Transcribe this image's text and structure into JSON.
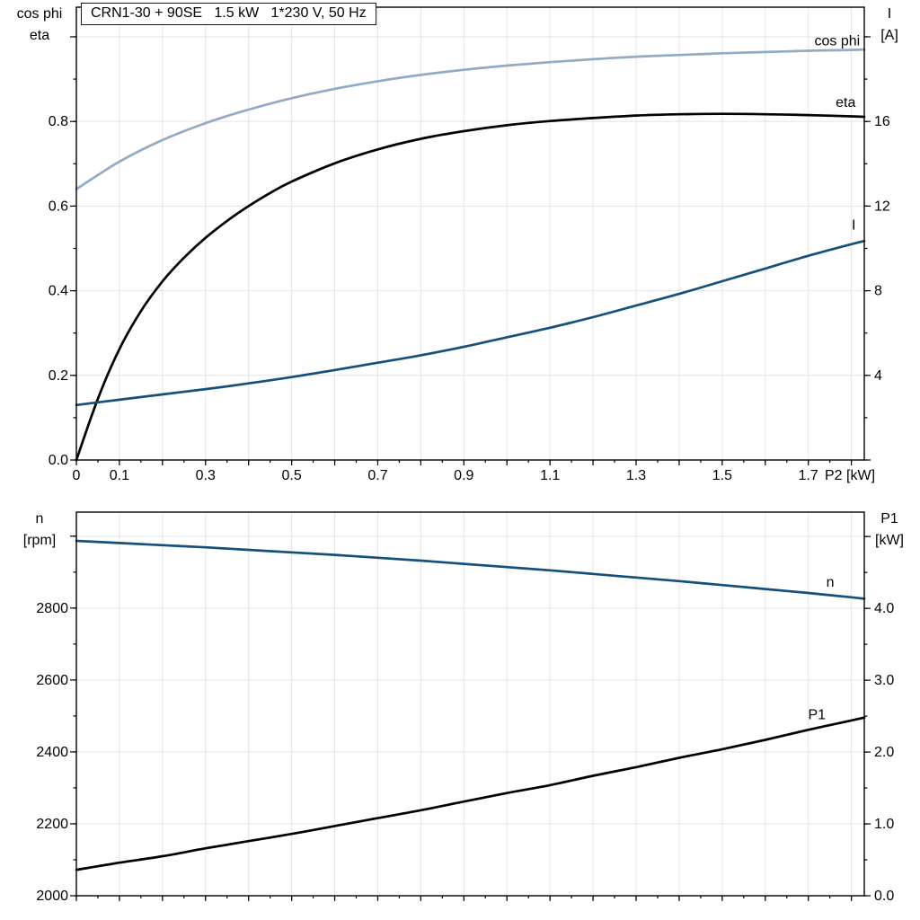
{
  "colors": {
    "black": "#000000",
    "dark_blue": "#14507a",
    "light_blue": "#92abc5",
    "grid": "#e4e4e4",
    "frame": "#000000"
  },
  "chart_data": [
    {
      "type": "line",
      "title": "CRN1-30 + 90SE   1.5 kW   1*230 V, 50 Hz",
      "x_axis": {
        "min": 0,
        "max": 1.83,
        "grid_step": 0.1,
        "tick_major": 0.1,
        "tick_minor": 0.05,
        "label": "P2 [kW]",
        "ticks": [
          [
            0,
            "0"
          ],
          [
            0.1,
            "0.1"
          ],
          [
            0.3,
            "0.3"
          ],
          [
            0.5,
            "0.5"
          ],
          [
            0.7,
            "0.7"
          ],
          [
            0.9,
            "0.9"
          ],
          [
            1.1,
            "1.1"
          ],
          [
            1.3,
            "1.3"
          ],
          [
            1.5,
            "1.5"
          ],
          [
            1.7,
            "1.7"
          ]
        ]
      },
      "y_left": {
        "label_lines": [
          "cos phi",
          "eta"
        ],
        "min": 0,
        "max": 1.07,
        "grid_step": 0.2,
        "tick_major": 0.2,
        "tick_minor": 0.1,
        "ticks": [
          [
            0,
            "0.0"
          ],
          [
            0.2,
            "0.2"
          ],
          [
            0.4,
            "0.4"
          ],
          [
            0.6,
            "0.6"
          ],
          [
            0.8,
            "0.8"
          ]
        ]
      },
      "y_right": {
        "label_lines": [
          "I",
          "[A]"
        ],
        "min": 0,
        "max": 21.4,
        "tick_major": 4,
        "tick_minor": 2,
        "ticks": [
          [
            4,
            "4"
          ],
          [
            8,
            "8"
          ],
          [
            12,
            "12"
          ],
          [
            16,
            "16"
          ]
        ]
      },
      "series": [
        {
          "id": "cos-phi",
          "name": "cos phi",
          "axis": "left",
          "color": "#92abc5",
          "label": {
            "x": 1.82,
            "y": 0.99,
            "anchor": "end"
          },
          "x": [
            0,
            0.1,
            0.2,
            0.3,
            0.4,
            0.5,
            0.6,
            0.7,
            0.8,
            0.9,
            1.0,
            1.1,
            1.2,
            1.3,
            1.4,
            1.5,
            1.6,
            1.7,
            1.8,
            1.83
          ],
          "y": [
            0.64,
            0.705,
            0.756,
            0.796,
            0.828,
            0.855,
            0.877,
            0.895,
            0.91,
            0.922,
            0.932,
            0.94,
            0.947,
            0.953,
            0.957,
            0.961,
            0.964,
            0.967,
            0.969,
            0.97
          ]
        },
        {
          "id": "eta",
          "name": "eta",
          "axis": "left",
          "color": "#000000",
          "label": {
            "x": 1.81,
            "y": 0.845,
            "anchor": "end"
          },
          "x": [
            0,
            0.05,
            0.1,
            0.15,
            0.2,
            0.25,
            0.3,
            0.35,
            0.4,
            0.45,
            0.5,
            0.6,
            0.7,
            0.8,
            0.9,
            1.0,
            1.1,
            1.2,
            1.3,
            1.4,
            1.5,
            1.6,
            1.7,
            1.8,
            1.83
          ],
          "y": [
            0,
            0.145,
            0.262,
            0.352,
            0.422,
            0.478,
            0.525,
            0.565,
            0.6,
            0.631,
            0.658,
            0.701,
            0.734,
            0.759,
            0.777,
            0.791,
            0.801,
            0.808,
            0.814,
            0.817,
            0.818,
            0.817,
            0.815,
            0.812,
            0.811
          ]
        },
        {
          "id": "current",
          "name": "I",
          "axis": "right",
          "color": "#14507a",
          "label": {
            "x": 1.81,
            "y": 11.1,
            "anchor": "end"
          },
          "x": [
            0,
            0.1,
            0.2,
            0.3,
            0.4,
            0.5,
            0.6,
            0.7,
            0.8,
            0.9,
            1.0,
            1.1,
            1.2,
            1.3,
            1.4,
            1.5,
            1.6,
            1.7,
            1.8,
            1.83
          ],
          "y": [
            2.6,
            2.85,
            3.1,
            3.35,
            3.62,
            3.92,
            4.25,
            4.6,
            4.95,
            5.35,
            5.8,
            6.25,
            6.75,
            7.3,
            7.85,
            8.45,
            9.05,
            9.65,
            10.2,
            10.35
          ]
        }
      ]
    },
    {
      "type": "line",
      "x_axis": {
        "min": 0,
        "max": 1.83,
        "grid_step": 0.1,
        "tick_major": 0.1,
        "tick_minor": 0.05,
        "ticks": []
      },
      "y_left": {
        "label_lines": [
          "n",
          "[rpm]"
        ],
        "min": 2000,
        "max": 3067,
        "grid_step": 200,
        "tick_major": 200,
        "tick_minor": 100,
        "ticks": [
          [
            2000,
            "2000"
          ],
          [
            2200,
            "2200"
          ],
          [
            2400,
            "2400"
          ],
          [
            2600,
            "2600"
          ],
          [
            2800,
            "2800"
          ]
        ]
      },
      "y_right": {
        "label_lines": [
          "P1",
          "[kW]"
        ],
        "min": 0,
        "max": 5.34,
        "tick_major": 1,
        "tick_minor": 0.5,
        "ticks": [
          [
            0,
            "0.0"
          ],
          [
            1,
            "1.0"
          ],
          [
            2,
            "2.0"
          ],
          [
            3,
            "3.0"
          ],
          [
            4,
            "4.0"
          ]
        ]
      },
      "series": [
        {
          "id": "speed",
          "name": "n",
          "axis": "left",
          "color": "#14507a",
          "label": {
            "x": 1.76,
            "y": 2872,
            "anchor": "end"
          },
          "x": [
            0,
            0.1,
            0.2,
            0.3,
            0.4,
            0.5,
            0.6,
            0.7,
            0.8,
            0.9,
            1.0,
            1.1,
            1.2,
            1.3,
            1.4,
            1.5,
            1.6,
            1.7,
            1.8,
            1.83
          ],
          "y": [
            2987,
            2981,
            2975,
            2969,
            2962,
            2955,
            2948,
            2940,
            2932,
            2923,
            2914,
            2905,
            2895,
            2885,
            2875,
            2864,
            2853,
            2842,
            2830,
            2826
          ]
        },
        {
          "id": "p1",
          "name": "P1",
          "axis": "right",
          "color": "#000000",
          "label": {
            "x": 1.72,
            "y": 2.52,
            "anchor": "middle"
          },
          "x": [
            0,
            0.1,
            0.2,
            0.3,
            0.4,
            0.5,
            0.6,
            0.7,
            0.8,
            0.9,
            1.0,
            1.1,
            1.2,
            1.3,
            1.4,
            1.5,
            1.6,
            1.7,
            1.8,
            1.83
          ],
          "y": [
            0.36,
            0.46,
            0.55,
            0.66,
            0.76,
            0.86,
            0.97,
            1.08,
            1.19,
            1.31,
            1.43,
            1.54,
            1.67,
            1.79,
            1.92,
            2.04,
            2.17,
            2.31,
            2.44,
            2.48
          ]
        }
      ]
    }
  ]
}
